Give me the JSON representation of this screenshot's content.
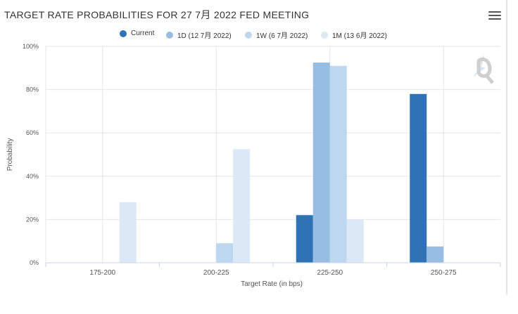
{
  "header": {
    "title": "TARGET RATE PROBABILITIES FOR 27 7月 2022 FED MEETING"
  },
  "chart_data": {
    "type": "bar",
    "title": "TARGET RATE PROBABILITIES FOR 27 7月 2022 FED MEETING",
    "xlabel": "Target Rate (in bps)",
    "ylabel": "Probability",
    "categories": [
      "175-200",
      "200-225",
      "225-250",
      "250-275"
    ],
    "ylim": [
      0,
      100
    ],
    "yticks": [
      0,
      20,
      40,
      60,
      80,
      100
    ],
    "ytick_labels": [
      "0%",
      "20%",
      "40%",
      "60%",
      "80%",
      "100%"
    ],
    "legend_position": "top-center",
    "grid": true,
    "series": [
      {
        "name": "Current",
        "color": "#2f72b5",
        "values": [
          0,
          0,
          22,
          78
        ]
      },
      {
        "name": "1D (12 7月 2022)",
        "color": "#97bde3",
        "values": [
          0,
          0,
          92.5,
          7.5
        ]
      },
      {
        "name": "1W (6 7月 2022)",
        "color": "#bdd7ef",
        "values": [
          0,
          9,
          91,
          0
        ]
      },
      {
        "name": "1M (13 6月 2022)",
        "color": "#dbe9f6",
        "values": [
          28,
          52.5,
          20,
          0
        ]
      }
    ]
  }
}
